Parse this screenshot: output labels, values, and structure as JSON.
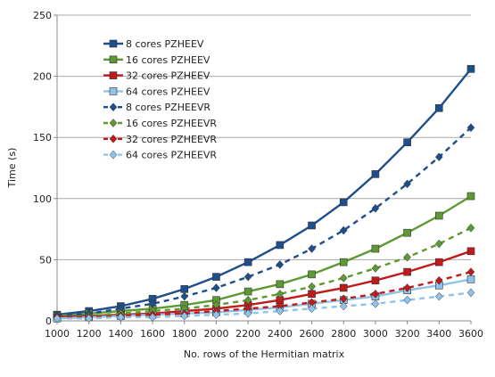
{
  "chart_data": {
    "type": "line",
    "title": "",
    "xlabel": "No. rows of the Hermitian matrix",
    "ylabel": "Time (s)",
    "x": [
      1000,
      1200,
      1400,
      1600,
      1800,
      2000,
      2200,
      2400,
      2600,
      2800,
      3000,
      3200,
      3400,
      3600
    ],
    "xlim": [
      1000,
      3600
    ],
    "ylim": [
      0,
      250
    ],
    "yticks": [
      0,
      50,
      100,
      150,
      200,
      250
    ],
    "grid": true,
    "legend_position": "top-left",
    "series": [
      {
        "name": "8 cores PZHEEV",
        "color": "#1f4e8c",
        "dashed": false,
        "marker": "square",
        "values": [
          5,
          8,
          12,
          18,
          26,
          36,
          48,
          62,
          78,
          97,
          120,
          146,
          174,
          206
        ]
      },
      {
        "name": "16 cores PZHEEV",
        "color": "#5d9a34",
        "dashed": false,
        "marker": "square",
        "values": [
          4,
          6,
          8,
          10,
          13,
          17,
          24,
          30,
          38,
          48,
          59,
          72,
          86,
          102
        ]
      },
      {
        "name": "32 cores PZHEEV",
        "color": "#c01a1a",
        "dashed": false,
        "marker": "square",
        "values": [
          3,
          4,
          5,
          6,
          8,
          10,
          13,
          17,
          22,
          27,
          33,
          40,
          48,
          57
        ]
      },
      {
        "name": "64 cores PZHEEV",
        "color": "#8fc3ea",
        "dashed": false,
        "marker": "square",
        "values": [
          2,
          3,
          4,
          5,
          6,
          7,
          9,
          11,
          14,
          17,
          20,
          25,
          29,
          34
        ]
      },
      {
        "name": "8 cores PZHEEVR",
        "color": "#1f4e8c",
        "dashed": true,
        "marker": "diamond",
        "values": [
          4,
          6,
          10,
          14,
          20,
          27,
          36,
          46,
          59,
          74,
          92,
          112,
          134,
          158
        ]
      },
      {
        "name": "16 cores PZHEEVR",
        "color": "#5d9a34",
        "dashed": true,
        "marker": "diamond",
        "values": [
          3,
          4,
          6,
          8,
          10,
          13,
          17,
          22,
          28,
          35,
          43,
          52,
          63,
          76
        ]
      },
      {
        "name": "32 cores PZHEEVR",
        "color": "#c01a1a",
        "dashed": true,
        "marker": "diamond",
        "values": [
          3,
          3,
          4,
          5,
          6,
          8,
          10,
          12,
          15,
          18,
          22,
          27,
          33,
          40
        ]
      },
      {
        "name": "64 cores PZHEEVR",
        "color": "#8fc3ea",
        "dashed": true,
        "marker": "diamond",
        "values": [
          2,
          2,
          3,
          3,
          4,
          5,
          6,
          8,
          10,
          12,
          14,
          17,
          20,
          23
        ]
      }
    ]
  }
}
